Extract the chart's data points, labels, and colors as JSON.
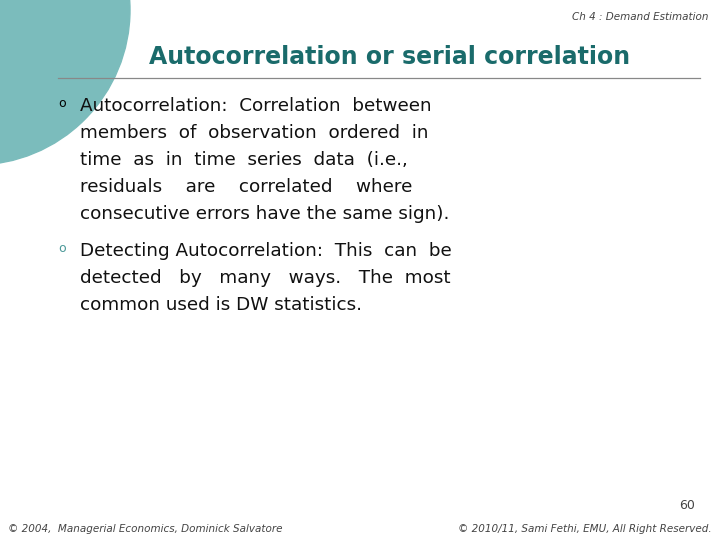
{
  "bg_color": "#ffffff",
  "header_text": "Ch 4 : Demand Estimation",
  "title": "Autocorrelation or serial correlation",
  "title_color": "#1a6b6b",
  "line_color": "#888888",
  "bullet1_color": "#000000",
  "bullet2_color": "#4a9898",
  "page_number": "60",
  "footer_left": "© 2004,  Managerial Economics, Dominick Salvatore",
  "footer_right": "© 2010/11, Sami Fethi, EMU, All Right Reserved.",
  "circle_dark": "#1a6b6b",
  "circle_light": "#7bbcbc",
  "text_color": "#111111",
  "header_color": "#444444",
  "bullet1_lines": [
    "Autocorrelation:  Correlation  between",
    "members  of  observation  ordered  in",
    "time  as  in  time  series  data  (i.e.,",
    "residuals    are    correlated    where",
    "consecutive errors have the same sign)."
  ],
  "bullet2_lines": [
    "Detecting Autocorrelation:  This  can  be",
    "detected   by   many   ways.   The  most",
    "common used is DW statistics."
  ]
}
